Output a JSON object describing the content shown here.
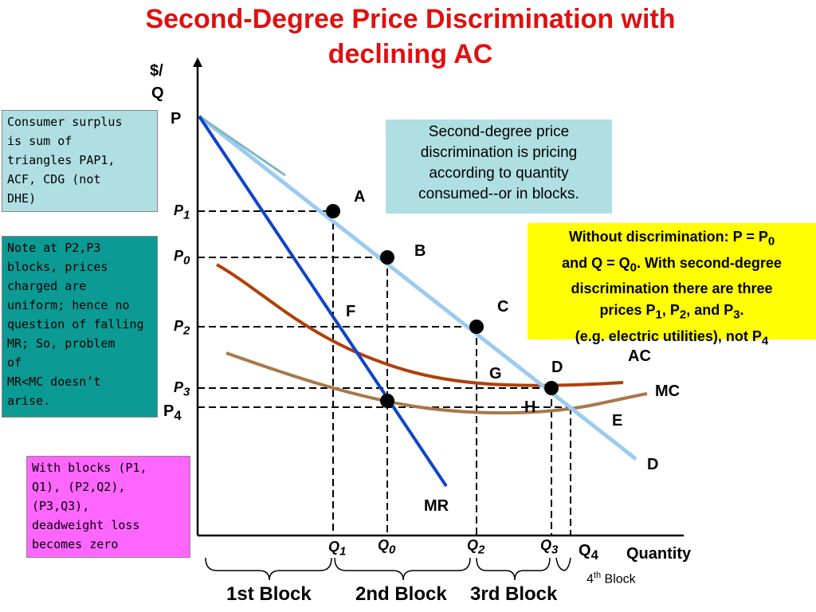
{
  "title_line1": "Second-Degree Price Discrimination with",
  "title_line2": "declining AC",
  "notes": {
    "consumer_surplus": [
      "Consumer surplus",
      "is sum of",
      "triangles PAP1,",
      "ACF, CDG (not",
      "DHE)"
    ],
    "uniform_prices": [
      "Note at P2,P3",
      "blocks, prices",
      "charged are",
      "uniform; hence no",
      "question of falling",
      "MR; So, problem",
      "of",
      "MR<MC doesn’t",
      "arise."
    ],
    "deadweight": [
      "With blocks (P1,",
      "Q1), (P2,Q2),",
      "(P3,Q3),",
      "deadweight loss",
      "becomes zero"
    ],
    "definition": [
      "Second-degree price",
      "discrimination is pricing",
      "according to quantity",
      "consumed--or in blocks."
    ],
    "without_discrimination": {
      "line1": "Without discrimination: P = P",
      "line1_sub": "0",
      "line2a": "and Q = Q",
      "line2_sub": "0",
      "line2b": ".  With second-degree",
      "line3": "discrimination there are three",
      "line4a": "prices P",
      "line4_sub1": "1",
      "line4b": ", P",
      "line4_sub2": "2",
      "line4c": ", and P",
      "line4_sub3": "3",
      "line4d": ".",
      "line5a": "(e.g. electric utilities), not P",
      "line5_sub": "4"
    }
  },
  "axes": {
    "y_label_1": "$/",
    "y_label_2": "Q",
    "x_label": "Quantity"
  },
  "price_labels": {
    "P": "P",
    "P1": "P",
    "P1_sub": "1",
    "P0": "P",
    "P0_sub": "0",
    "P2": "P",
    "P2_sub": "2",
    "P3": "P",
    "P3_sub": "3",
    "P4": "P",
    "P4_sub": "4"
  },
  "quantity_labels": {
    "Q1": "Q",
    "Q1_sub": "1",
    "Q0": "Q",
    "Q0_sub": "0",
    "Q2": "Q",
    "Q2_sub": "2",
    "Q3": "Q",
    "Q3_sub": "3",
    "Q4": "Q",
    "Q4_sub": "4"
  },
  "points": {
    "A": "A",
    "B": "B",
    "C": "C",
    "D": "D",
    "E": "E",
    "F": "F",
    "G": "G",
    "H": "H"
  },
  "curves": {
    "AC": "AC",
    "MC": "MC",
    "D": "D",
    "MR": "MR"
  },
  "blocks": {
    "first": "1st Block",
    "second": "2nd Block",
    "third": "3rd Block",
    "fourth_a": "4",
    "fourth_sup": "th",
    "fourth_b": " Block"
  },
  "colors": {
    "title": "#e01010",
    "demand": "#9ccbf0",
    "mr": "#1044c8",
    "ac": "#b04008",
    "mc": "#a8784a"
  }
}
